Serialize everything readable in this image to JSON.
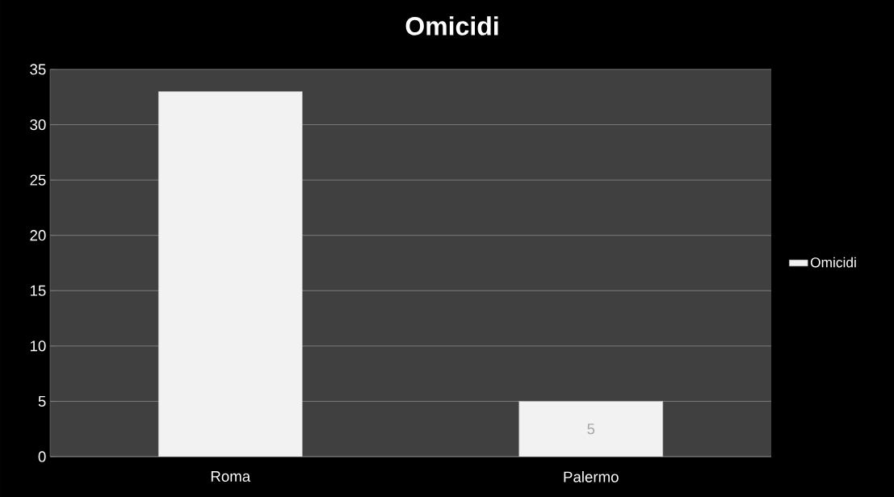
{
  "chart_data": {
    "type": "bar",
    "title": "Omicidi",
    "categories": [
      "Roma",
      "Palermo"
    ],
    "series": [
      {
        "name": "Omicidi",
        "color": "#f2f2f2",
        "values": [
          33,
          5
        ],
        "value_labels": [
          null,
          "5"
        ]
      }
    ],
    "ylim": [
      0,
      35
    ],
    "yticks": [
      0,
      5,
      10,
      15,
      20,
      25,
      30,
      35
    ],
    "grid": "y",
    "legend": "right"
  }
}
